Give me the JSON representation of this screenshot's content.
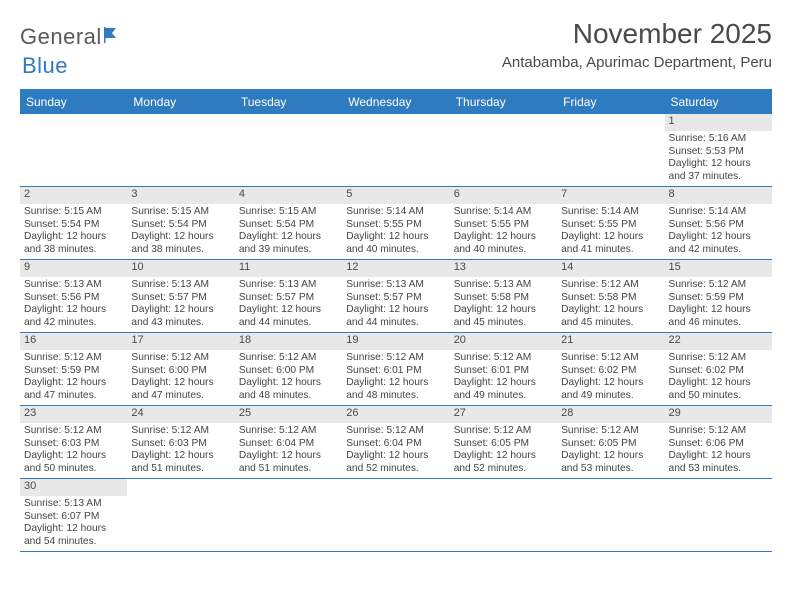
{
  "logo": {
    "general": "General",
    "blue": "Blue"
  },
  "title": "November 2025",
  "location": "Antabamba, Apurimac Department, Peru",
  "colors": {
    "accent": "#2f7bbf",
    "daynum_bg": "#e8e8e8",
    "text": "#444444"
  },
  "dow": [
    "Sunday",
    "Monday",
    "Tuesday",
    "Wednesday",
    "Thursday",
    "Friday",
    "Saturday"
  ],
  "weeks": [
    [
      {
        "empty": true
      },
      {
        "empty": true
      },
      {
        "empty": true
      },
      {
        "empty": true
      },
      {
        "empty": true
      },
      {
        "empty": true
      },
      {
        "day": "1",
        "sunrise": "Sunrise: 5:16 AM",
        "sunset": "Sunset: 5:53 PM",
        "daylight1": "Daylight: 12 hours",
        "daylight2": "and 37 minutes."
      }
    ],
    [
      {
        "day": "2",
        "sunrise": "Sunrise: 5:15 AM",
        "sunset": "Sunset: 5:54 PM",
        "daylight1": "Daylight: 12 hours",
        "daylight2": "and 38 minutes."
      },
      {
        "day": "3",
        "sunrise": "Sunrise: 5:15 AM",
        "sunset": "Sunset: 5:54 PM",
        "daylight1": "Daylight: 12 hours",
        "daylight2": "and 38 minutes."
      },
      {
        "day": "4",
        "sunrise": "Sunrise: 5:15 AM",
        "sunset": "Sunset: 5:54 PM",
        "daylight1": "Daylight: 12 hours",
        "daylight2": "and 39 minutes."
      },
      {
        "day": "5",
        "sunrise": "Sunrise: 5:14 AM",
        "sunset": "Sunset: 5:55 PM",
        "daylight1": "Daylight: 12 hours",
        "daylight2": "and 40 minutes."
      },
      {
        "day": "6",
        "sunrise": "Sunrise: 5:14 AM",
        "sunset": "Sunset: 5:55 PM",
        "daylight1": "Daylight: 12 hours",
        "daylight2": "and 40 minutes."
      },
      {
        "day": "7",
        "sunrise": "Sunrise: 5:14 AM",
        "sunset": "Sunset: 5:55 PM",
        "daylight1": "Daylight: 12 hours",
        "daylight2": "and 41 minutes."
      },
      {
        "day": "8",
        "sunrise": "Sunrise: 5:14 AM",
        "sunset": "Sunset: 5:56 PM",
        "daylight1": "Daylight: 12 hours",
        "daylight2": "and 42 minutes."
      }
    ],
    [
      {
        "day": "9",
        "sunrise": "Sunrise: 5:13 AM",
        "sunset": "Sunset: 5:56 PM",
        "daylight1": "Daylight: 12 hours",
        "daylight2": "and 42 minutes."
      },
      {
        "day": "10",
        "sunrise": "Sunrise: 5:13 AM",
        "sunset": "Sunset: 5:57 PM",
        "daylight1": "Daylight: 12 hours",
        "daylight2": "and 43 minutes."
      },
      {
        "day": "11",
        "sunrise": "Sunrise: 5:13 AM",
        "sunset": "Sunset: 5:57 PM",
        "daylight1": "Daylight: 12 hours",
        "daylight2": "and 44 minutes."
      },
      {
        "day": "12",
        "sunrise": "Sunrise: 5:13 AM",
        "sunset": "Sunset: 5:57 PM",
        "daylight1": "Daylight: 12 hours",
        "daylight2": "and 44 minutes."
      },
      {
        "day": "13",
        "sunrise": "Sunrise: 5:13 AM",
        "sunset": "Sunset: 5:58 PM",
        "daylight1": "Daylight: 12 hours",
        "daylight2": "and 45 minutes."
      },
      {
        "day": "14",
        "sunrise": "Sunrise: 5:12 AM",
        "sunset": "Sunset: 5:58 PM",
        "daylight1": "Daylight: 12 hours",
        "daylight2": "and 45 minutes."
      },
      {
        "day": "15",
        "sunrise": "Sunrise: 5:12 AM",
        "sunset": "Sunset: 5:59 PM",
        "daylight1": "Daylight: 12 hours",
        "daylight2": "and 46 minutes."
      }
    ],
    [
      {
        "day": "16",
        "sunrise": "Sunrise: 5:12 AM",
        "sunset": "Sunset: 5:59 PM",
        "daylight1": "Daylight: 12 hours",
        "daylight2": "and 47 minutes."
      },
      {
        "day": "17",
        "sunrise": "Sunrise: 5:12 AM",
        "sunset": "Sunset: 6:00 PM",
        "daylight1": "Daylight: 12 hours",
        "daylight2": "and 47 minutes."
      },
      {
        "day": "18",
        "sunrise": "Sunrise: 5:12 AM",
        "sunset": "Sunset: 6:00 PM",
        "daylight1": "Daylight: 12 hours",
        "daylight2": "and 48 minutes."
      },
      {
        "day": "19",
        "sunrise": "Sunrise: 5:12 AM",
        "sunset": "Sunset: 6:01 PM",
        "daylight1": "Daylight: 12 hours",
        "daylight2": "and 48 minutes."
      },
      {
        "day": "20",
        "sunrise": "Sunrise: 5:12 AM",
        "sunset": "Sunset: 6:01 PM",
        "daylight1": "Daylight: 12 hours",
        "daylight2": "and 49 minutes."
      },
      {
        "day": "21",
        "sunrise": "Sunrise: 5:12 AM",
        "sunset": "Sunset: 6:02 PM",
        "daylight1": "Daylight: 12 hours",
        "daylight2": "and 49 minutes."
      },
      {
        "day": "22",
        "sunrise": "Sunrise: 5:12 AM",
        "sunset": "Sunset: 6:02 PM",
        "daylight1": "Daylight: 12 hours",
        "daylight2": "and 50 minutes."
      }
    ],
    [
      {
        "day": "23",
        "sunrise": "Sunrise: 5:12 AM",
        "sunset": "Sunset: 6:03 PM",
        "daylight1": "Daylight: 12 hours",
        "daylight2": "and 50 minutes."
      },
      {
        "day": "24",
        "sunrise": "Sunrise: 5:12 AM",
        "sunset": "Sunset: 6:03 PM",
        "daylight1": "Daylight: 12 hours",
        "daylight2": "and 51 minutes."
      },
      {
        "day": "25",
        "sunrise": "Sunrise: 5:12 AM",
        "sunset": "Sunset: 6:04 PM",
        "daylight1": "Daylight: 12 hours",
        "daylight2": "and 51 minutes."
      },
      {
        "day": "26",
        "sunrise": "Sunrise: 5:12 AM",
        "sunset": "Sunset: 6:04 PM",
        "daylight1": "Daylight: 12 hours",
        "daylight2": "and 52 minutes."
      },
      {
        "day": "27",
        "sunrise": "Sunrise: 5:12 AM",
        "sunset": "Sunset: 6:05 PM",
        "daylight1": "Daylight: 12 hours",
        "daylight2": "and 52 minutes."
      },
      {
        "day": "28",
        "sunrise": "Sunrise: 5:12 AM",
        "sunset": "Sunset: 6:05 PM",
        "daylight1": "Daylight: 12 hours",
        "daylight2": "and 53 minutes."
      },
      {
        "day": "29",
        "sunrise": "Sunrise: 5:12 AM",
        "sunset": "Sunset: 6:06 PM",
        "daylight1": "Daylight: 12 hours",
        "daylight2": "and 53 minutes."
      }
    ],
    [
      {
        "day": "30",
        "sunrise": "Sunrise: 5:13 AM",
        "sunset": "Sunset: 6:07 PM",
        "daylight1": "Daylight: 12 hours",
        "daylight2": "and 54 minutes."
      },
      {
        "empty": true
      },
      {
        "empty": true
      },
      {
        "empty": true
      },
      {
        "empty": true
      },
      {
        "empty": true
      },
      {
        "empty": true
      }
    ]
  ]
}
